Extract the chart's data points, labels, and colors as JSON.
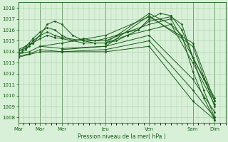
{
  "title": "",
  "xlabel": "Pression niveau de la mer( hPa )",
  "bg_color": "#d8f0d8",
  "grid_color": "#a8cca8",
  "line_color": "#1a5c1a",
  "ylim": [
    1007.5,
    1018.5
  ],
  "yticks": [
    1008,
    1009,
    1010,
    1011,
    1012,
    1013,
    1014,
    1015,
    1016,
    1017,
    1018
  ],
  "xlim": [
    0,
    228
  ],
  "xtick_positions": [
    0,
    24,
    48,
    96,
    144,
    192,
    216
  ],
  "xtick_labels": [
    "Mar",
    "Mar",
    "Mer",
    "Jeu",
    "Ven",
    "Sam",
    "Dim"
  ],
  "vline_positions": [
    0,
    24,
    48,
    96,
    144,
    192,
    216
  ],
  "lines": [
    {
      "x": [
        0,
        4,
        8,
        12,
        16,
        24,
        32,
        40,
        48,
        60,
        72,
        84,
        96,
        108,
        120,
        132,
        144,
        156,
        168,
        180,
        192,
        204,
        216
      ],
      "y": [
        1014.0,
        1014.2,
        1014.5,
        1014.8,
        1015.2,
        1015.8,
        1016.2,
        1016.0,
        1015.5,
        1015.0,
        1015.2,
        1015.0,
        1015.2,
        1015.5,
        1015.8,
        1016.0,
        1016.8,
        1017.0,
        1017.2,
        1016.5,
        1013.5,
        1010.5,
        1008.0
      ]
    },
    {
      "x": [
        0,
        4,
        8,
        12,
        16,
        24,
        32,
        40,
        48,
        60,
        72,
        84,
        96,
        108,
        120,
        132,
        144,
        156,
        168,
        180,
        192,
        204,
        216
      ],
      "y": [
        1013.8,
        1014.0,
        1014.2,
        1014.5,
        1015.0,
        1015.5,
        1016.5,
        1016.8,
        1016.5,
        1015.5,
        1015.0,
        1014.8,
        1014.8,
        1015.0,
        1015.5,
        1016.0,
        1017.0,
        1017.5,
        1017.3,
        1016.0,
        1013.5,
        1011.5,
        1009.5
      ]
    },
    {
      "x": [
        0,
        8,
        16,
        24,
        32,
        40,
        48,
        72,
        96,
        120,
        144,
        168,
        192,
        216
      ],
      "y": [
        1014.1,
        1014.3,
        1014.8,
        1015.2,
        1015.5,
        1015.3,
        1015.2,
        1014.8,
        1014.8,
        1015.5,
        1016.0,
        1016.5,
        1013.0,
        1009.2
      ]
    },
    {
      "x": [
        0,
        8,
        16,
        24,
        32,
        40,
        48,
        72,
        96,
        120,
        144,
        168,
        192,
        216
      ],
      "y": [
        1014.2,
        1014.5,
        1014.8,
        1015.5,
        1015.8,
        1015.5,
        1015.3,
        1015.0,
        1015.0,
        1015.8,
        1016.5,
        1017.0,
        1013.5,
        1009.8
      ]
    },
    {
      "x": [
        0,
        12,
        24,
        48,
        96,
        144,
        192,
        216
      ],
      "y": [
        1013.8,
        1014.0,
        1014.5,
        1014.3,
        1014.5,
        1015.5,
        1011.5,
        1008.5
      ]
    },
    {
      "x": [
        0,
        12,
        24,
        48,
        96,
        144,
        192,
        216
      ],
      "y": [
        1013.6,
        1013.8,
        1014.2,
        1014.0,
        1014.2,
        1015.0,
        1010.5,
        1008.0
      ]
    },
    {
      "x": [
        0,
        24,
        48,
        96,
        144,
        192,
        216
      ],
      "y": [
        1013.5,
        1014.0,
        1014.0,
        1014.0,
        1014.5,
        1009.5,
        1007.8
      ]
    },
    {
      "x": [
        24,
        48,
        96,
        144,
        192,
        216
      ],
      "y": [
        1014.5,
        1014.8,
        1015.5,
        1017.2,
        1014.8,
        1009.5
      ]
    },
    {
      "x": [
        48,
        96,
        144,
        192,
        216
      ],
      "y": [
        1014.2,
        1014.5,
        1017.3,
        1014.5,
        1009.0
      ]
    },
    {
      "x": [
        96,
        144,
        168,
        180,
        192,
        204,
        216
      ],
      "y": [
        1014.8,
        1017.5,
        1016.5,
        1015.5,
        1012.2,
        1009.8,
        1007.8
      ]
    }
  ]
}
